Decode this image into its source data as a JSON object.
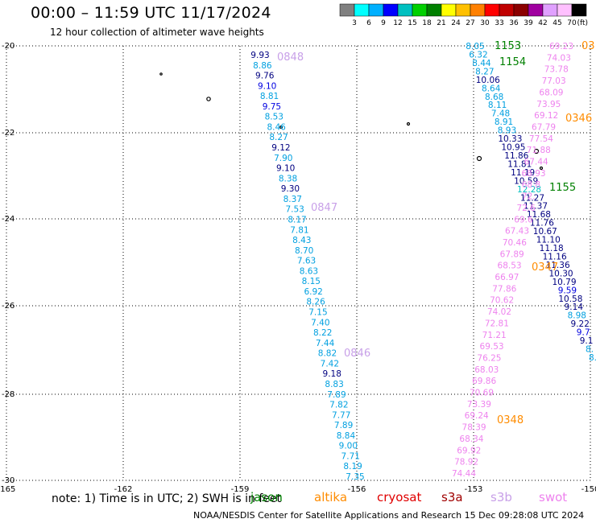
{
  "title": "00:00  –  11:59 UTC 11/17/2024",
  "subtitle": "12 hour collection of altimeter wave heights",
  "colorbar": {
    "unit": "(ft)",
    "labels": [
      "3",
      "6",
      "9",
      "12",
      "15",
      "18",
      "21",
      "24",
      "27",
      "30",
      "33",
      "36",
      "39",
      "42",
      "45",
      "70"
    ],
    "colors": [
      "#808080",
      "#00ffff",
      "#00b0ff",
      "#0000ff",
      "#00c0c0",
      "#00d000",
      "#008000",
      "#ffff00",
      "#ffc000",
      "#ff8000",
      "#ff0000",
      "#c00000",
      "#8b0000",
      "#a000a0",
      "#e0a0ff",
      "#ffc0ff",
      "#000000"
    ]
  },
  "axes": {
    "lon_labels": [
      "-165",
      "-162",
      "-159",
      "-156",
      "-153",
      "-150"
    ],
    "lat_labels": [
      "-20",
      "-22",
      "-24",
      "-26",
      "-28",
      "-30"
    ]
  },
  "track_labels": [
    {
      "text": "0848",
      "color": "#c8a0e8"
    },
    {
      "text": "0847",
      "color": "#c8a0e8"
    },
    {
      "text": "0846",
      "color": "#c8a0e8"
    },
    {
      "text": "1153",
      "color": "#008000"
    },
    {
      "text": "1154",
      "color": "#008000"
    },
    {
      "text": "1155",
      "color": "#008000"
    },
    {
      "text": "0346",
      "color": "#ff8c00"
    },
    {
      "text": "0347",
      "color": "#ff8c00"
    },
    {
      "text": "0348",
      "color": "#ff8c00"
    },
    {
      "text": "03",
      "color": "#ff8c00"
    }
  ],
  "track_a": [
    "9.93",
    "8.86",
    "9.76",
    "9.10",
    "8.81",
    "9.75",
    "8.53",
    "8.46",
    "8.27",
    "9.12",
    "7.90",
    "9.10",
    "8.38",
    "9.30",
    "8.37",
    "7.53",
    "8.17",
    "7.81",
    "8.43",
    "8.70",
    "7.63",
    "8.63",
    "8.15",
    "6.92",
    "8.26",
    "7.15",
    "7.40",
    "8.22",
    "7.44",
    "8.82",
    "7.42",
    "9.18",
    "8.83",
    "7.89",
    "7.82",
    "7.77",
    "7.89",
    "8.84",
    "9.00",
    "7.71",
    "8.19",
    "7.35"
  ],
  "track_a_colors": [
    "#000080",
    "#00a0e0",
    "#000080",
    "#0000e0",
    "#00a0e0",
    "#0000e0",
    "#00a0e0",
    "#00a0e0",
    "#00a0e0",
    "#000080",
    "#00a0e0",
    "#000080",
    "#00a0e0",
    "#000080",
    "#00a0e0",
    "#00a0e0",
    "#00a0e0",
    "#00a0e0",
    "#00a0e0",
    "#00a0e0",
    "#00a0e0",
    "#00a0e0",
    "#00a0e0",
    "#00a0e0",
    "#00a0e0",
    "#00a0e0",
    "#00a0e0",
    "#00a0e0",
    "#00a0e0",
    "#00a0e0",
    "#00a0e0",
    "#000080",
    "#00a0e0",
    "#00a0e0",
    "#00a0e0",
    "#00a0e0",
    "#00a0e0",
    "#00a0e0",
    "#00a0e0",
    "#00a0e0",
    "#00a0e0",
    "#00a0e0"
  ],
  "track_b": [
    "8.05",
    "6.32",
    "8.44",
    "8.27",
    "10.06",
    "8.64",
    "8.68",
    "8.11",
    "7.48",
    "8.91",
    "8.93",
    "10.33",
    "10.95",
    "11.86",
    "11.81",
    "11.19",
    "10.59",
    "12.28",
    "11.27",
    "11.37",
    "11.68",
    "11.76",
    "10.67",
    "11.10",
    "11.18",
    "11.16",
    "11.36",
    "10.30",
    "10.79",
    "9.59",
    "10.58",
    "9.14",
    "8.98",
    "9.22",
    "9.7",
    "9.1",
    "8.",
    "8."
  ],
  "track_b_colors": [
    "#00a0e0",
    "#00a0e0",
    "#00a0e0",
    "#00a0e0",
    "#000080",
    "#00a0e0",
    "#00a0e0",
    "#00a0e0",
    "#00a0e0",
    "#00a0e0",
    "#00a0e0",
    "#000080",
    "#000080",
    "#000080",
    "#000080",
    "#000080",
    "#000080",
    "#00c0c0",
    "#000080",
    "#000080",
    "#000080",
    "#000080",
    "#000080",
    "#000080",
    "#000080",
    "#000080",
    "#000080",
    "#000080",
    "#000080",
    "#0000e0",
    "#000080",
    "#000080",
    "#00a0e0",
    "#000080",
    "#0000e0",
    "#000080",
    "#00a0e0",
    "#00a0e0"
  ],
  "track_c": [
    "69.23",
    "74.03",
    "73.78",
    "77.03",
    "68.09",
    "73.95",
    "69.12",
    "67.79",
    "77.54",
    "71.88",
    "67.44",
    "68.93",
    "68.8",
    "72.",
    "72.6",
    "69.6",
    "67.43",
    "70.46",
    "67.89",
    "68.53",
    "66.97",
    "77.86",
    "70.62",
    "74.02",
    "72.81",
    "71.21",
    "69.53",
    "76.25",
    "68.03",
    "69.86",
    "70.69",
    "73.39",
    "69.24",
    "78.39",
    "68.34",
    "69.92",
    "78.92",
    "74.44"
  ],
  "note": "note:  1) Time is in UTC; 2) SWH is in feet",
  "legend": [
    {
      "label": "jason",
      "color": "#008000"
    },
    {
      "label": "altika",
      "color": "#ff8c00"
    },
    {
      "label": "cryosat",
      "color": "#e00000"
    },
    {
      "label": "s3a",
      "color": "#a00000"
    },
    {
      "label": "s3b",
      "color": "#c8a0e8"
    },
    {
      "label": "swot",
      "color": "#ee82ee"
    }
  ],
  "credit": "NOAA/NESDIS Center for Satellite Applications and Research    15 Dec 09:28:08 UTC 2024"
}
